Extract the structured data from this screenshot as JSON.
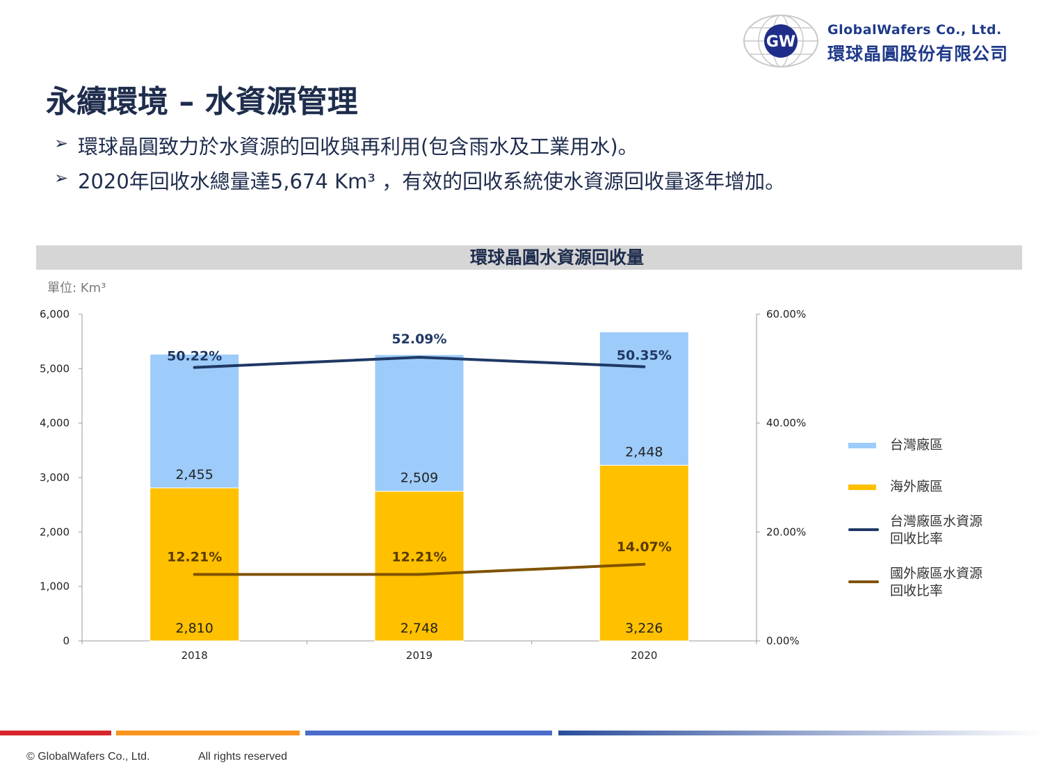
{
  "header": {
    "logo_mark_text": "GW",
    "company_en": "GlobalWafers Co., Ltd.",
    "company_zh": "環球晶圓股份有限公司"
  },
  "page_title": "永續環境 – 水資源管理",
  "bullets": [
    "環球晶圓致力於水資源的回收與再利用(包含雨水及工業用水)。",
    "2020年回收水總量達5,674 Km³ ，有效的回收系統使水資源回收量逐年增加。"
  ],
  "bullet_marker": "➢",
  "chart_data": {
    "type": "bar",
    "title": "環球晶圓水資源回收量",
    "unit_label": "單位: Km³",
    "stacked": true,
    "categories": [
      "2018",
      "2019",
      "2020"
    ],
    "series": [
      {
        "name": "海外廠區",
        "type": "bar",
        "axis": "left",
        "color": "#ffc000",
        "values": [
          2810,
          2748,
          3226
        ],
        "labels": [
          "2,810",
          "2,748",
          "3,226"
        ]
      },
      {
        "name": "台灣廠區",
        "type": "bar",
        "axis": "left",
        "color": "#9dcbfa",
        "values": [
          2455,
          2509,
          2448
        ],
        "labels": [
          "2,455",
          "2,509",
          "2,448"
        ]
      },
      {
        "name": "台灣廠區水資源回收比率",
        "type": "line",
        "axis": "right",
        "color": "#1f3864",
        "values": [
          50.22,
          52.09,
          50.35
        ],
        "labels": [
          "50.22%",
          "52.09%",
          "50.35%"
        ]
      },
      {
        "name": "國外廠區水資源回收比率",
        "type": "line",
        "axis": "right",
        "color": "#7f5200",
        "values": [
          12.21,
          12.21,
          14.07
        ],
        "labels": [
          "12.21%",
          "12.21%",
          "14.07%"
        ]
      }
    ],
    "ylim": [
      0,
      6000
    ],
    "yticks": [
      "0",
      "1,000",
      "2,000",
      "3,000",
      "4,000",
      "5,000",
      "6,000"
    ],
    "y2lim": [
      0,
      60
    ],
    "y2ticks": [
      "0.00%",
      "20.00%",
      "40.00%",
      "60.00%"
    ],
    "legend_position": "right",
    "grid": false
  },
  "legend": [
    {
      "label": "台灣廠區",
      "color": "#9dcbfa",
      "kind": "bar"
    },
    {
      "label": "海外廠區",
      "color": "#ffc000",
      "kind": "bar"
    },
    {
      "label": "台灣廠區水資源回收比率",
      "color": "#1f3864",
      "kind": "line"
    },
    {
      "label": "國外廠區水資源回收比率",
      "color": "#7f5200",
      "kind": "line"
    }
  ],
  "footer": {
    "copyright": "© GlobalWafers Co., Ltd.",
    "rights": "All rights reserved",
    "bar_colors": [
      "#d7262b",
      "#f7941d",
      "#4a6cc9",
      "#2a4d9c"
    ]
  }
}
